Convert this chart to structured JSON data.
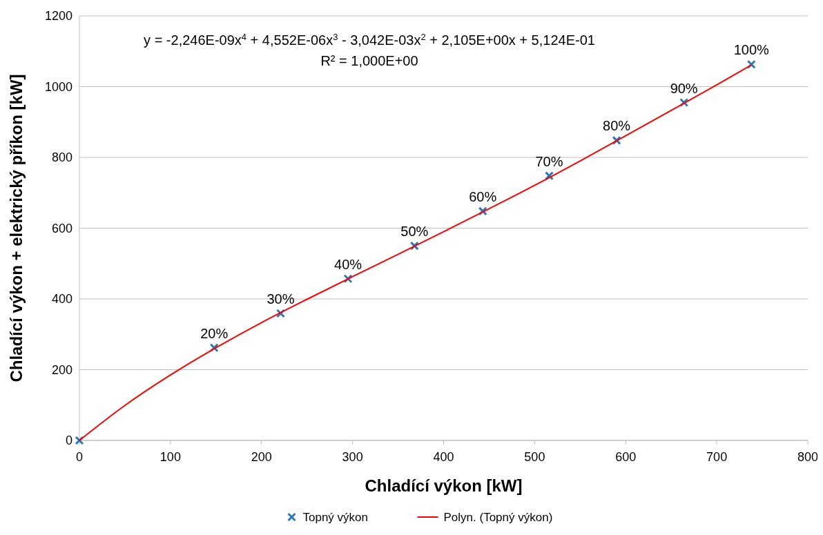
{
  "chart_data": {
    "type": "scatter",
    "xlabel": "Chladící výkon [kW]",
    "ylabel": "Chladící výkon + elektrický příkon [kW]",
    "xlim": [
      0,
      800
    ],
    "xticks": [
      0,
      100,
      200,
      300,
      400,
      500,
      600,
      700,
      800
    ],
    "ylim": [
      0,
      1200
    ],
    "yticks": [
      0,
      200,
      400,
      600,
      800,
      1000,
      1200
    ],
    "grid": "y",
    "legend": "bottom",
    "annotations": [
      "y = -2,246E-09x$^{4}$ + 4,552E-06x$^{3}$ - 3,042E-03x$^{2}$ + 2,105E+00x + 5,124E-01",
      "R² = 1,000E+00",
      {
        "text": "20%",
        "x": 148,
        "y": 262
      },
      {
        "text": "30%",
        "x": 221,
        "y": 359
      },
      {
        "text": "40%",
        "x": 295,
        "y": 457
      },
      {
        "text": "50%",
        "x": 368,
        "y": 550
      },
      {
        "text": "60%",
        "x": 443,
        "y": 648
      },
      {
        "text": "70%",
        "x": 516,
        "y": 748
      },
      {
        "text": "80%",
        "x": 590,
        "y": 848
      },
      {
        "text": "90%",
        "x": 664,
        "y": 955
      },
      {
        "text": "100%",
        "x": 738,
        "y": 1063
      }
    ],
    "series": [
      {
        "name": "Topný výkon",
        "color": "#2e75b6",
        "marker": "cross",
        "x": [
          0,
          148,
          221,
          295,
          368,
          443,
          516,
          590,
          664,
          738
        ],
        "values": [
          0,
          262,
          359,
          457,
          550,
          648,
          748,
          848,
          955,
          1063
        ]
      },
      {
        "name": "Polyn. (Topný výkon)",
        "type": "line",
        "color": "#ff0000",
        "marker": "none",
        "line_style": "solid",
        "x": [
          0,
          50,
          100,
          150,
          200,
          250,
          300,
          350,
          400,
          450,
          500,
          550,
          600,
          650,
          700,
          738
        ],
        "values": [
          0,
          99,
          185,
          262,
          333,
          399,
          463,
          526,
          590,
          655,
          721,
          790,
          861,
          933,
          1005,
          1061
        ]
      }
    ]
  }
}
